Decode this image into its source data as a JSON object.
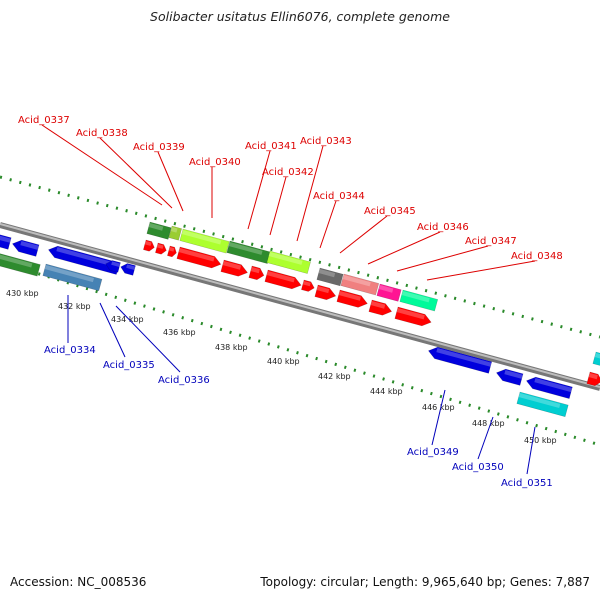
{
  "title": "Solibacter usitatus Ellin6076, complete genome",
  "footer": {
    "accession_label": "Accession: NC_008536",
    "summary": "Topology: circular; Length: 9,965,640 bp; Genes: 7,887"
  },
  "colors": {
    "forward_label": "#dd0000",
    "reverse_label": "#0000bb",
    "backbone": "#888888",
    "dots": "#2a8a2a"
  },
  "ticks": [
    "430 kbp",
    "432 kbp",
    "434 kbp",
    "436 kbp",
    "438 kbp",
    "440 kbp",
    "442 kbp",
    "444 kbp",
    "446 kbp",
    "448 kbp",
    "450 kbp"
  ],
  "forward_labels": [
    "Acid_0337",
    "Acid_0338",
    "Acid_0339",
    "Acid_0340",
    "Acid_0341",
    "Acid_0342",
    "Acid_0343",
    "Acid_0344",
    "Acid_0345",
    "Acid_0346",
    "Acid_0347",
    "Acid_0348"
  ],
  "reverse_labels": [
    "Acid_0334",
    "Acid_0335",
    "Acid_0336",
    "Acid_0349",
    "Acid_0350",
    "Acid_0351"
  ]
}
